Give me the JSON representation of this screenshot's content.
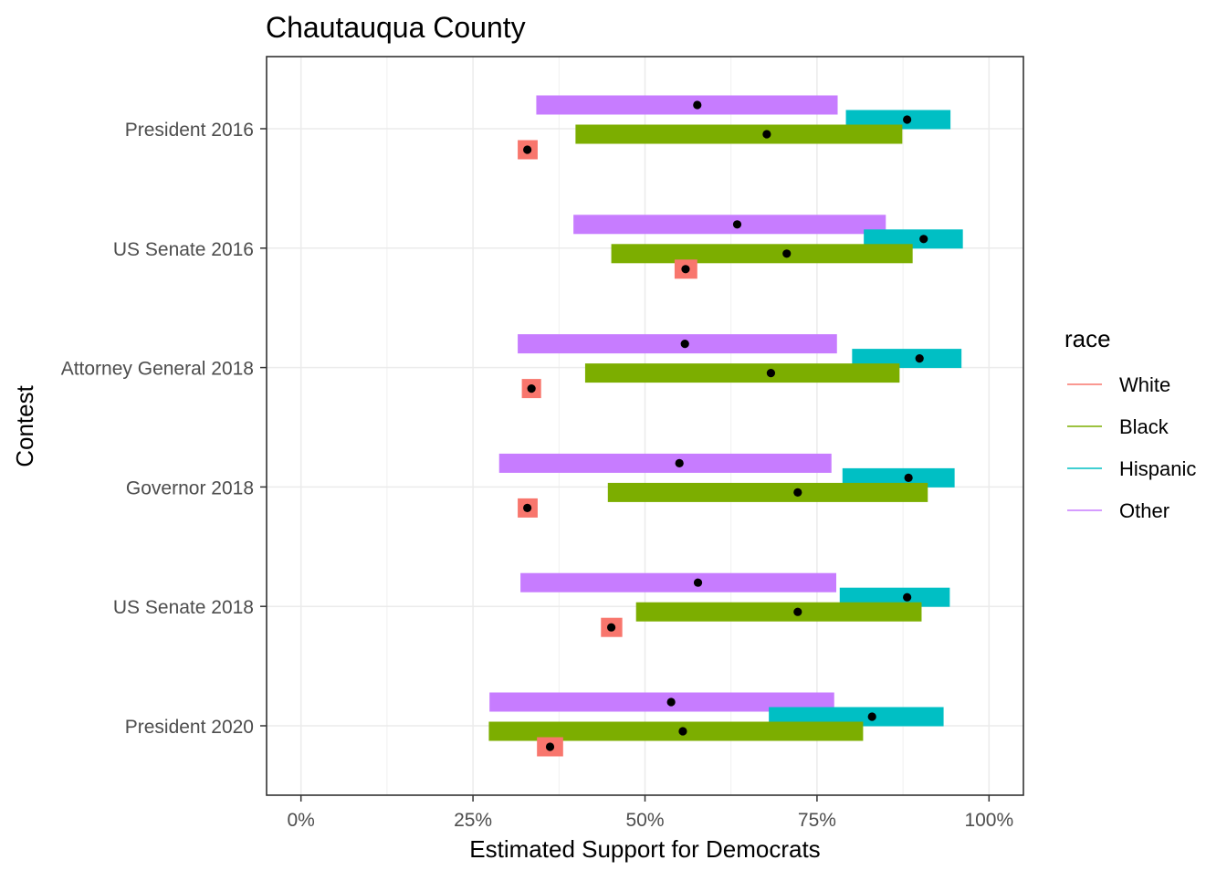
{
  "chart_data": {
    "type": "bar",
    "title": "Chautauqua County",
    "xlabel": "Estimated Support for Democrats",
    "ylabel": "Contest",
    "x_ticks": [
      {
        "value": 0,
        "label": "0%"
      },
      {
        "value": 25,
        "label": "25%"
      },
      {
        "value": 50,
        "label": "50%"
      },
      {
        "value": 75,
        "label": "75%"
      },
      {
        "value": 100,
        "label": "100%"
      }
    ],
    "xlim": [
      -5,
      105
    ],
    "grid": true,
    "legend": {
      "title": "race",
      "position": "right"
    },
    "categories": [
      "President 2016",
      "US Senate 2016",
      "Attorney General 2018",
      "Governor 2018",
      "US Senate 2018",
      "President 2020"
    ],
    "series": [
      {
        "name": "White",
        "color": "#F8766D",
        "estimate": [
          32.9,
          55.9,
          33.5,
          32.9,
          45.1,
          36.2
        ],
        "low": [
          31.5,
          54.3,
          32.1,
          31.5,
          43.6,
          34.3
        ],
        "high": [
          34.4,
          57.6,
          34.9,
          34.4,
          46.7,
          38.1
        ]
      },
      {
        "name": "Black",
        "color": "#7CAE00",
        "estimate": [
          67.7,
          70.6,
          68.3,
          72.2,
          72.2,
          55.5
        ],
        "low": [
          39.9,
          45.1,
          41.3,
          44.6,
          48.7,
          27.3
        ],
        "high": [
          87.4,
          88.9,
          87.0,
          91.1,
          90.2,
          81.7
        ]
      },
      {
        "name": "Hispanic",
        "color": "#00BFC4",
        "estimate": [
          88.1,
          90.5,
          89.9,
          88.3,
          88.1,
          83.0
        ],
        "low": [
          79.2,
          81.8,
          80.1,
          78.7,
          78.3,
          68.0
        ],
        "high": [
          94.4,
          96.2,
          96.0,
          95.0,
          94.3,
          93.4
        ]
      },
      {
        "name": "Other",
        "color": "#C77CFF",
        "estimate": [
          57.6,
          63.4,
          55.8,
          55.0,
          57.7,
          53.8
        ],
        "low": [
          34.2,
          39.6,
          31.5,
          28.8,
          31.9,
          27.4
        ],
        "high": [
          78.0,
          85.0,
          77.9,
          77.1,
          77.8,
          77.5
        ]
      }
    ]
  }
}
